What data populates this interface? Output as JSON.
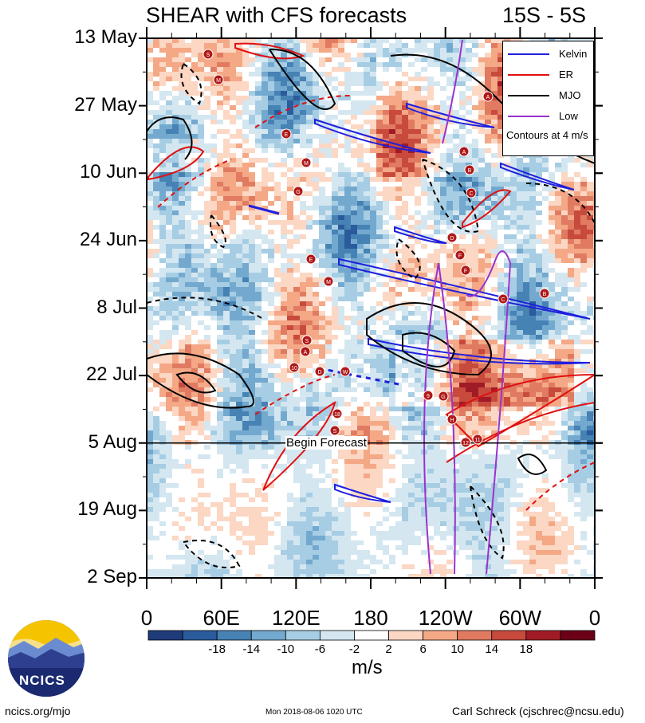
{
  "header": {
    "title": "SHEAR with CFS forecasts",
    "lat_range": "15S - 5S"
  },
  "chart_data": {
    "type": "heatmap",
    "title": "SHEAR with CFS forecasts",
    "subtitle": "15S - 5S",
    "x_tick_labels": [
      "0",
      "60E",
      "120E",
      "180",
      "120W",
      "60W",
      "0"
    ],
    "x_range_deg_east": [
      0,
      360
    ],
    "y_tick_labels": [
      "13 May",
      "27 May",
      "10 Jun",
      "24 Jun",
      "8 Jul",
      "22 Jul",
      "5 Aug",
      "19 Aug",
      "2 Sep"
    ],
    "y_range_days": [
      0,
      112
    ],
    "colorbar": {
      "unit": "m/s",
      "tick_labels": [
        "-18",
        "-14",
        "-10",
        "-6",
        "-2",
        "2",
        "6",
        "10",
        "14",
        "18"
      ],
      "colors": [
        "#1f3b7a",
        "#2a5b9c",
        "#4682b4",
        "#74a9cf",
        "#a6cde3",
        "#d4e7f1",
        "#ffffff",
        "#fbd7c4",
        "#f4a886",
        "#e07b62",
        "#c84a3d",
        "#a11b26",
        "#6b0018"
      ]
    },
    "forecast_marker": {
      "label": "Begin Forecast",
      "date": "5 Aug"
    },
    "legend": {
      "position": "top-right",
      "entries": [
        {
          "name": "Kelvin",
          "color": "#1f1fdd"
        },
        {
          "name": "ER",
          "color": "#e01010"
        },
        {
          "name": "MJO",
          "color": "#000000"
        },
        {
          "name": "Low",
          "color": "#9933cc"
        }
      ],
      "note": "Contours at 4 m/s"
    },
    "storm_markers": [
      "S",
      "M",
      "A",
      "E",
      "A",
      "M",
      "B",
      "G",
      "C",
      "D",
      "F",
      "E",
      "F",
      "M",
      "C",
      "B",
      "S",
      "A",
      "10",
      "D",
      "W",
      "9",
      "G",
      "H",
      "18",
      "S",
      "12",
      "11"
    ]
  },
  "footer": {
    "logo_text": "NCICS",
    "url": "ncics.org/mjo",
    "timestamp": "Mon 2018-08-06 1020 UTC",
    "author": "Carl Schreck (cjschrec@ncsu.edu)"
  }
}
